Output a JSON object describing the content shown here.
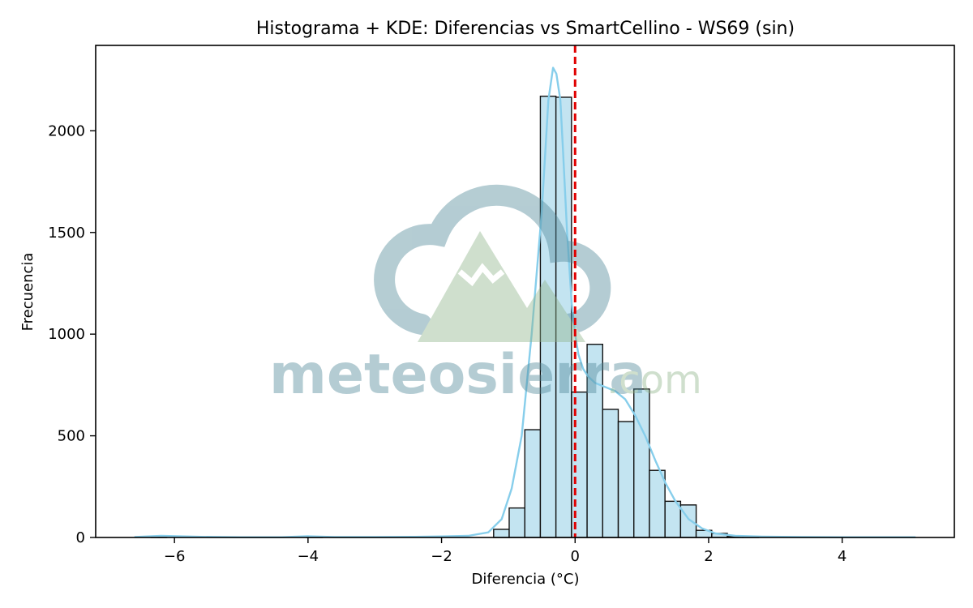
{
  "chart_data": {
    "type": "bar",
    "title": "Histograma + KDE: Diferencias vs SmartCellino - WS69 (sin)",
    "xlabel": "Diferencia (°C)",
    "ylabel": "Frecuencia",
    "xlim": [
      -7.18,
      5.68
    ],
    "ylim": [
      0,
      2420
    ],
    "xticks": [
      -6,
      -4,
      -2,
      0,
      2,
      4
    ],
    "yticks": [
      0,
      500,
      1000,
      1500,
      2000
    ],
    "xtick_labels": [
      "−6",
      "−4",
      "−2",
      "0",
      "2",
      "4"
    ],
    "ytick_labels": [
      "0",
      "500",
      "1000",
      "1500",
      "2000"
    ],
    "bin_width": 0.2333,
    "bins": [
      {
        "x0": -1.22,
        "count": 40
      },
      {
        "x0": -0.987,
        "count": 145
      },
      {
        "x0": -0.753,
        "count": 530
      },
      {
        "x0": -0.52,
        "count": 2170
      },
      {
        "x0": -0.287,
        "count": 2165
      },
      {
        "x0": -0.053,
        "count": 715
      },
      {
        "x0": 0.18,
        "count": 950
      },
      {
        "x0": 0.413,
        "count": 630
      },
      {
        "x0": 0.647,
        "count": 570
      },
      {
        "x0": 0.88,
        "count": 730
      },
      {
        "x0": 1.113,
        "count": 330
      },
      {
        "x0": 1.347,
        "count": 178
      },
      {
        "x0": 1.58,
        "count": 160
      },
      {
        "x0": 1.813,
        "count": 35
      },
      {
        "x0": 2.047,
        "count": 20
      },
      {
        "x0": 2.28,
        "count": 5
      },
      {
        "x0": 2.513,
        "count": 3
      },
      {
        "x0": -4.02,
        "count": 5
      },
      {
        "x0": -6.35,
        "count": 5
      }
    ],
    "kde": {
      "x": [
        -6.6,
        -6.2,
        -5.6,
        -5.0,
        -4.4,
        -4.0,
        -3.6,
        -3.0,
        -2.4,
        -2.0,
        -1.6,
        -1.3,
        -1.1,
        -0.95,
        -0.8,
        -0.65,
        -0.5,
        -0.4,
        -0.33,
        -0.28,
        -0.22,
        -0.18,
        -0.12,
        -0.05,
        0.0,
        0.05,
        0.12,
        0.2,
        0.3,
        0.45,
        0.6,
        0.75,
        0.9,
        1.05,
        1.2,
        1.35,
        1.5,
        1.7,
        1.9,
        2.1,
        2.4,
        2.8,
        3.4,
        4.0,
        4.6,
        5.1
      ],
      "y": [
        2,
        8,
        3,
        1,
        1,
        6,
        2,
        2,
        3,
        5,
        8,
        25,
        90,
        240,
        500,
        1000,
        1600,
        2150,
        2310,
        2280,
        2150,
        1900,
        1500,
        1150,
        1000,
        900,
        830,
        790,
        760,
        740,
        720,
        680,
        600,
        500,
        380,
        270,
        180,
        90,
        45,
        20,
        8,
        4,
        2,
        1,
        1,
        1
      ]
    },
    "reference_line": {
      "x": 0,
      "style": "dashed",
      "color": "#e00000"
    },
    "bar_fill": "#c3e4f1",
    "bar_edge": "#111111",
    "kde_color": "#87ceeb",
    "grid": false,
    "legend": "none"
  },
  "watermark": {
    "brand_main": "meteosierra",
    "brand_suffix": ".com"
  }
}
